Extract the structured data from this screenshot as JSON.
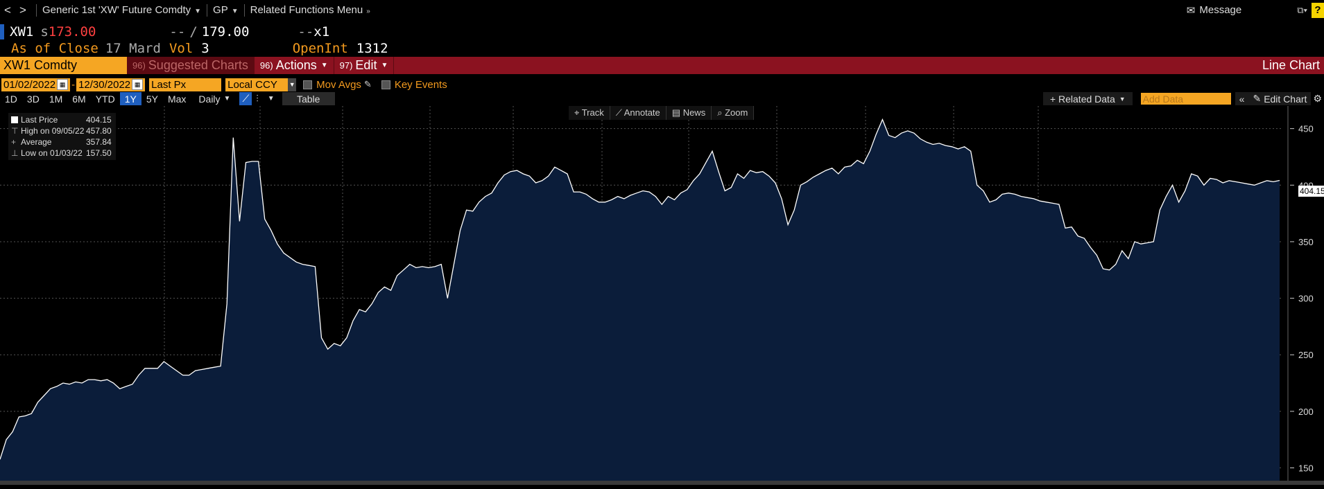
{
  "topbar": {
    "back": "<",
    "forward": ">",
    "security": "Generic 1st 'XW' Future Comdty",
    "gp": "GP",
    "menu": "Related Functions Menu",
    "message": "Message",
    "help": "?"
  },
  "quote": {
    "ticker": "XW1",
    "last_prefix": "s",
    "last": "173.00",
    "bid": "--",
    "ask": "179.00",
    "size_prefix": "--",
    "size": "x1",
    "as_of_label": "As of Close",
    "as_of_date": "17 Mar",
    "as_of_suffix": "d",
    "vol_label": "Vol",
    "vol": "3",
    "openint_label": "OpenInt",
    "openint": "1312"
  },
  "ribbon": {
    "ticker_field": "XW1 Comdty",
    "suggested_num": "96)",
    "suggested": "Suggested Charts",
    "actions_num": "96)",
    "actions": "Actions",
    "edit_num": "97)",
    "edit": "Edit",
    "right_label": "Line Chart"
  },
  "controls": {
    "start_date": "01/02/2022",
    "dash": "-",
    "end_date": "12/30/2022",
    "field": "Last Px",
    "currency": "Local CCY",
    "mov_avgs": "Mov Avgs",
    "key_events": "Key Events"
  },
  "ranges": {
    "items": [
      "1D",
      "3D",
      "1M",
      "6M",
      "YTD",
      "1Y",
      "5Y",
      "Max"
    ],
    "active": "1Y",
    "frequency": "Daily",
    "table": "Table",
    "related_data": "Related Data",
    "add_data_placeholder": "Add Data",
    "edit_chart": "Edit Chart"
  },
  "chart_tools": {
    "track": "Track",
    "annotate": "Annotate",
    "news": "News",
    "zoom": "Zoom"
  },
  "legend": {
    "last_label": "Last Price",
    "last_value": "404.15",
    "high_label": "High on 09/05/22",
    "high_value": "457.80",
    "avg_label": "Average",
    "avg_value": "357.84",
    "low_label": "Low on 01/03/22",
    "low_value": "157.50"
  },
  "price_tag": "404.15",
  "colors": {
    "accent_orange": "#f5a623",
    "ribbon_red": "#8b1220",
    "area_fill": "#0b1d3a",
    "line": "#ffffff"
  },
  "chart_data": {
    "type": "area",
    "series": [
      {
        "values": [
          157.5,
          175,
          182,
          195,
          196,
          198,
          208,
          214,
          220,
          222,
          225,
          224,
          226,
          225,
          228,
          228,
          227,
          228,
          225,
          220,
          222,
          224,
          232,
          238,
          238,
          238,
          244,
          240,
          236,
          232,
          232,
          236,
          237,
          238,
          239,
          240,
          295,
          442,
          368,
          420,
          421,
          421,
          370,
          360,
          348,
          340,
          336,
          332,
          330,
          329,
          328,
          265,
          255,
          260,
          258,
          265,
          280,
          290,
          288,
          295,
          305,
          310,
          307,
          320,
          325,
          330,
          327,
          328,
          327,
          328,
          330,
          300,
          330,
          360,
          378,
          377,
          385,
          390,
          393,
          402,
          409,
          412,
          413,
          410,
          408,
          402,
          404,
          408,
          416,
          413,
          410,
          394,
          394,
          392,
          388,
          385,
          385,
          387,
          390,
          388,
          391,
          393,
          395,
          394,
          390,
          383,
          390,
          387,
          393,
          396,
          404,
          410,
          420,
          430,
          412,
          395,
          398,
          410,
          406,
          413,
          411,
          412,
          408,
          402,
          388,
          365,
          378,
          400,
          403,
          407,
          410,
          413,
          415,
          410,
          416,
          417,
          422,
          419,
          430,
          445,
          458,
          444,
          442,
          446,
          448,
          446,
          441,
          438,
          436,
          437,
          435,
          434,
          432,
          434,
          430,
          400,
          395,
          385,
          387,
          392,
          393,
          392,
          390,
          389,
          388,
          386,
          385,
          384,
          383,
          362,
          363,
          355,
          353,
          345,
          338,
          326,
          325,
          330,
          342,
          335,
          350,
          348,
          349,
          350,
          378,
          390,
          400,
          385,
          395,
          410,
          408,
          400,
          406,
          405,
          402,
          404,
          403,
          402,
          401,
          400,
          402,
          404,
          403,
          404.15
        ]
      }
    ],
    "x_ticks": [],
    "y_ticks": [
      150,
      200,
      250,
      300,
      350,
      400,
      450
    ],
    "ylim": [
      135,
      470
    ],
    "grid": true
  }
}
